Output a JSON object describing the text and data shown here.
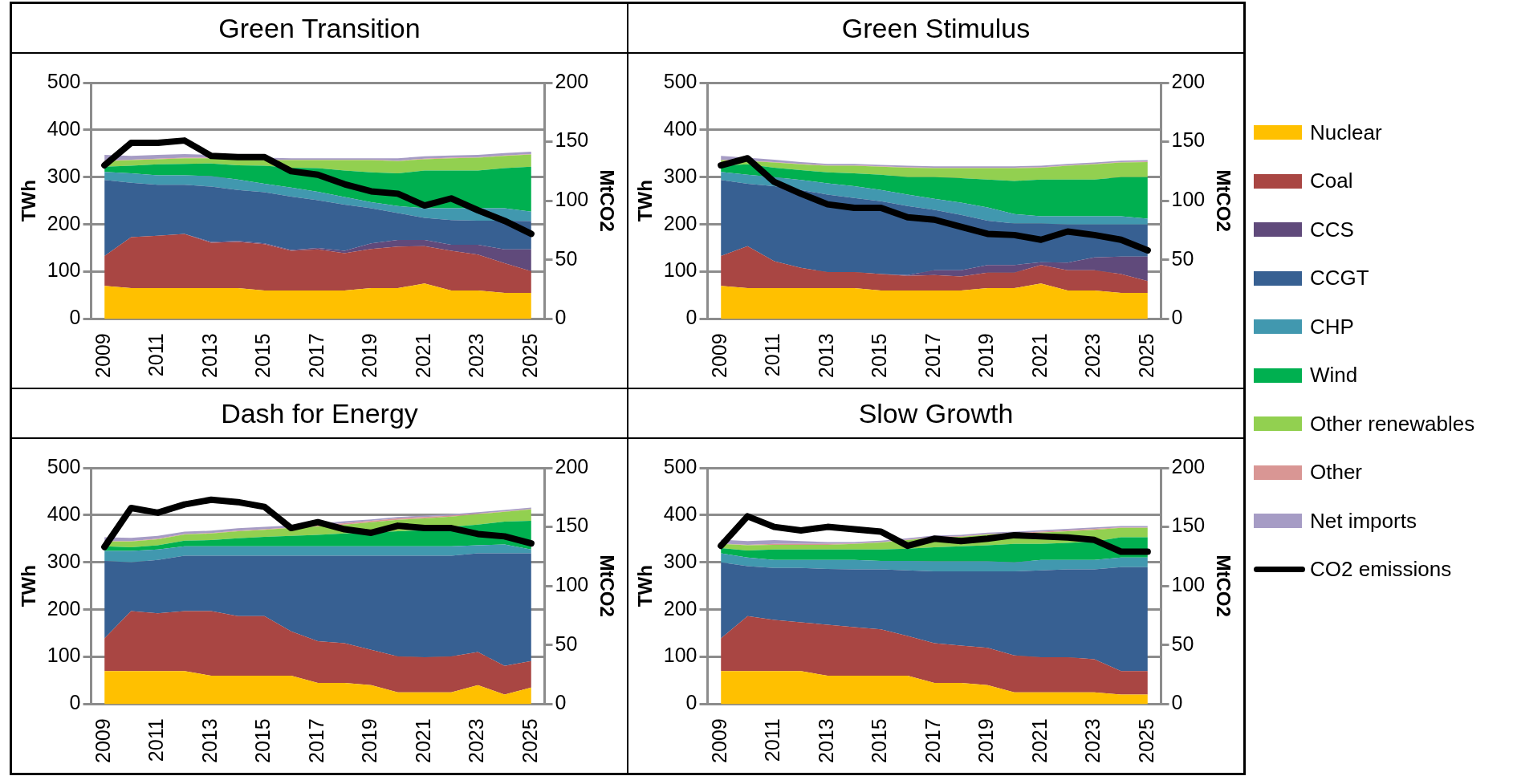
{
  "chart_data": [
    {
      "type": "area",
      "title": "Green Transition",
      "categories": [
        "2009",
        null,
        "2011",
        null,
        "2013",
        null,
        "2015",
        null,
        "2017",
        null,
        "2019",
        null,
        "2021",
        null,
        "2023",
        null,
        "2025"
      ],
      "ylabel": "TWh",
      "y2label": "MtCO2",
      "ylim": [
        0,
        500
      ],
      "yticks": [
        0,
        100,
        200,
        300,
        400,
        500
      ],
      "y2lim": [
        0,
        200
      ],
      "y2ticks": [
        0,
        50,
        100,
        150,
        200
      ],
      "stacked": true,
      "grid": "y",
      "marker": "none",
      "legend": "right",
      "series": [
        {
          "name": "Nuclear",
          "color": "#ffc000",
          "values": [
            70,
            65,
            65,
            65,
            65,
            65,
            60,
            60,
            60,
            60,
            65,
            65,
            75,
            60,
            60,
            55,
            55
          ]
        },
        {
          "name": "Coal",
          "color": "#a94643",
          "values": [
            63,
            108,
            111,
            115,
            96,
            98,
            98,
            84,
            87,
            79,
            83,
            88,
            79,
            84,
            76,
            63,
            46
          ]
        },
        {
          "name": "CCS",
          "color": "#604a7b",
          "values": [
            0,
            0,
            0,
            0,
            2,
            2,
            2,
            2,
            3,
            5,
            12,
            14,
            13,
            13,
            21,
            29,
            46
          ]
        },
        {
          "name": "CCGT",
          "color": "#376092",
          "values": [
            161,
            115,
            108,
            104,
            117,
            108,
            108,
            113,
            101,
            98,
            74,
            57,
            47,
            52,
            51,
            61,
            60
          ]
        },
        {
          "name": "CHP",
          "color": "#4198af",
          "values": [
            17,
            20,
            20,
            20,
            22,
            22,
            18,
            19,
            18,
            16,
            13,
            15,
            20,
            25,
            26,
            26,
            20
          ]
        },
        {
          "name": "Wind",
          "color": "#00b050",
          "values": [
            11,
            16,
            23,
            24,
            27,
            30,
            38,
            42,
            50,
            56,
            63,
            69,
            80,
            80,
            80,
            85,
            95
          ]
        },
        {
          "name": "Other renewables",
          "color": "#92d050",
          "values": [
            12,
            12,
            11,
            12,
            11,
            13,
            12,
            16,
            17,
            22,
            26,
            26,
            24,
            26,
            27,
            26,
            26
          ]
        },
        {
          "name": "Other",
          "color": "#d99694",
          "values": [
            1,
            1,
            1,
            1,
            1,
            1,
            1,
            1,
            1,
            1,
            1,
            1,
            1,
            1,
            1,
            1,
            1
          ]
        },
        {
          "name": "Net imports",
          "color": "#a69cc5",
          "values": [
            12,
            8,
            8,
            8,
            6,
            5,
            4,
            3,
            3,
            3,
            3,
            5,
            5,
            5,
            5,
            5,
            5
          ]
        },
        {
          "name": "CO2 emissions",
          "color": "#000000",
          "type": "line",
          "axis": "y2",
          "values": [
            130,
            149,
            149,
            151,
            138,
            137,
            137,
            125,
            122,
            114,
            108,
            106,
            96,
            102,
            92,
            83,
            72
          ]
        }
      ]
    },
    {
      "type": "area",
      "title": "Green Stimulus",
      "categories": [
        "2009",
        null,
        "2011",
        null,
        "2013",
        null,
        "2015",
        null,
        "2017",
        null,
        "2019",
        null,
        "2021",
        null,
        "2023",
        null,
        "2025"
      ],
      "ylabel": "TWh",
      "y2label": "MtCO2",
      "ylim": [
        0,
        500
      ],
      "yticks": [
        0,
        100,
        200,
        300,
        400,
        500
      ],
      "y2lim": [
        0,
        200
      ],
      "y2ticks": [
        0,
        50,
        100,
        150,
        200
      ],
      "stacked": true,
      "grid": "y",
      "marker": "none",
      "series": [
        {
          "color": "#ffc000",
          "values": [
            70,
            65,
            65,
            65,
            65,
            65,
            60,
            60,
            60,
            60,
            65,
            65,
            75,
            60,
            60,
            55,
            55
          ]
        },
        {
          "color": "#a94643",
          "values": [
            63,
            89,
            57,
            43,
            34,
            34,
            35,
            31,
            33,
            30,
            33,
            33,
            39,
            43,
            43,
            40,
            25
          ]
        },
        {
          "color": "#604a7b",
          "values": [
            0,
            0,
            0,
            0,
            0,
            0,
            0,
            2,
            10,
            13,
            16,
            16,
            6,
            16,
            27,
            37,
            52
          ]
        },
        {
          "color": "#376092",
          "values": [
            161,
            132,
            159,
            165,
            164,
            157,
            154,
            146,
            128,
            117,
            94,
            88,
            82,
            81,
            70,
            68,
            68
          ]
        },
        {
          "color": "#4198af",
          "values": [
            17,
            19,
            19,
            21,
            24,
            25,
            24,
            24,
            23,
            26,
            28,
            20,
            15,
            17,
            17,
            17,
            12
          ]
        },
        {
          "color": "#00b050",
          "values": [
            13,
            22,
            20,
            21,
            23,
            27,
            32,
            37,
            46,
            52,
            59,
            70,
            78,
            78,
            78,
            83,
            88
          ]
        },
        {
          "color": "#92d050",
          "values": [
            12,
            7,
            11,
            12,
            14,
            16,
            17,
            20,
            19,
            21,
            24,
            27,
            25,
            29,
            32,
            31,
            32
          ]
        },
        {
          "color": "#d99694",
          "values": [
            1,
            1,
            1,
            1,
            1,
            1,
            1,
            1,
            1,
            1,
            1,
            1,
            1,
            1,
            1,
            1,
            1
          ]
        },
        {
          "color": "#a69cc5",
          "values": [
            8,
            6,
            5,
            4,
            3,
            3,
            3,
            3,
            3,
            3,
            3,
            3,
            3,
            3,
            3,
            3,
            3
          ]
        },
        {
          "color": "#000000",
          "type": "line",
          "axis": "y2",
          "values": [
            130,
            136,
            116,
            106,
            97,
            94,
            94,
            86,
            84,
            78,
            72,
            71,
            67,
            74,
            71,
            67,
            58
          ]
        }
      ]
    },
    {
      "type": "area",
      "title": "Dash for Energy",
      "categories": [
        "2009",
        null,
        "2011",
        null,
        "2013",
        null,
        "2015",
        null,
        "2017",
        null,
        "2019",
        null,
        "2021",
        null,
        "2023",
        null,
        "2025"
      ],
      "ylabel": "TWh",
      "y2label": "MtCO2",
      "ylim": [
        0,
        500
      ],
      "yticks": [
        0,
        100,
        200,
        300,
        400,
        500
      ],
      "y2lim": [
        0,
        200
      ],
      "y2ticks": [
        0,
        50,
        100,
        150,
        200
      ],
      "stacked": true,
      "grid": "y",
      "marker": "none",
      "series": [
        {
          "color": "#ffc000",
          "values": [
            70,
            70,
            70,
            70,
            60,
            60,
            60,
            60,
            45,
            45,
            40,
            25,
            25,
            25,
            40,
            20,
            35
          ]
        },
        {
          "color": "#a94643",
          "values": [
            69,
            127,
            122,
            127,
            137,
            126,
            126,
            94,
            88,
            84,
            75,
            76,
            74,
            76,
            70,
            61,
            56
          ]
        },
        {
          "color": "#376092",
          "values": [
            164,
            103,
            113,
            117,
            117,
            128,
            128,
            160,
            181,
            185,
            199,
            213,
            215,
            213,
            209,
            238,
            228
          ]
        },
        {
          "color": "#4198af",
          "values": [
            21,
            24,
            22,
            20,
            20,
            20,
            20,
            20,
            20,
            20,
            20,
            20,
            20,
            20,
            17,
            19,
            8
          ]
        },
        {
          "color": "#00b050",
          "values": [
            10,
            8,
            9,
            12,
            13,
            17,
            20,
            22,
            24,
            27,
            29,
            32,
            34,
            41,
            44,
            48,
            61
          ]
        },
        {
          "color": "#92d050",
          "values": [
            10,
            12,
            13,
            13,
            14,
            15,
            15,
            17,
            18,
            19,
            22,
            24,
            25,
            22,
            22,
            21,
            24
          ]
        },
        {
          "color": "#d99694",
          "values": [
            1,
            1,
            1,
            1,
            1,
            1,
            1,
            1,
            2,
            3,
            3,
            3,
            3,
            2,
            1,
            1,
            1
          ]
        },
        {
          "color": "#a69cc5",
          "values": [
            8,
            7,
            6,
            5,
            5,
            5,
            5,
            4,
            4,
            4,
            3,
            3,
            3,
            3,
            3,
            3,
            3
          ]
        },
        {
          "color": "#000000",
          "type": "line",
          "axis": "y2",
          "values": [
            133,
            166,
            162,
            169,
            173,
            171,
            167,
            149,
            154,
            148,
            145,
            151,
            149,
            149,
            144,
            142,
            136
          ]
        }
      ]
    },
    {
      "type": "area",
      "title": "Slow Growth",
      "categories": [
        "2009",
        null,
        "2011",
        null,
        "2013",
        null,
        "2015",
        null,
        "2017",
        null,
        "2019",
        null,
        "2021",
        null,
        "2023",
        null,
        "2025"
      ],
      "ylabel": "TWh",
      "y2label": "MtCO2",
      "ylim": [
        0,
        500
      ],
      "yticks": [
        0,
        100,
        200,
        300,
        400,
        500
      ],
      "y2lim": [
        0,
        200
      ],
      "y2ticks": [
        0,
        50,
        100,
        150,
        200
      ],
      "stacked": true,
      "grid": "y",
      "marker": "none",
      "series": [
        {
          "color": "#ffc000",
          "values": [
            70,
            70,
            70,
            70,
            60,
            60,
            60,
            60,
            45,
            45,
            40,
            25,
            25,
            25,
            25,
            20,
            20
          ]
        },
        {
          "color": "#a94643",
          "values": [
            69,
            116,
            108,
            103,
            108,
            103,
            98,
            84,
            84,
            79,
            79,
            78,
            74,
            74,
            70,
            50,
            50
          ]
        },
        {
          "color": "#376092",
          "values": [
            161,
            106,
            110,
            115,
            118,
            122,
            127,
            139,
            152,
            157,
            162,
            178,
            184,
            186,
            190,
            220,
            220
          ]
        },
        {
          "color": "#4198af",
          "values": [
            19,
            18,
            17,
            17,
            19,
            20,
            18,
            20,
            21,
            21,
            21,
            19,
            22,
            20,
            20,
            20,
            20
          ]
        },
        {
          "color": "#00b050",
          "values": [
            11,
            15,
            22,
            22,
            22,
            22,
            24,
            26,
            30,
            32,
            34,
            39,
            34,
            36,
            39,
            43,
            43
          ]
        },
        {
          "color": "#92d050",
          "values": [
            9,
            11,
            10,
            10,
            10,
            12,
            15,
            18,
            21,
            20,
            23,
            22,
            24,
            25,
            25,
            20,
            20
          ]
        },
        {
          "color": "#d99694",
          "values": [
            1,
            1,
            2,
            2,
            2,
            1,
            1,
            1,
            1,
            1,
            1,
            1,
            2,
            2,
            2,
            1,
            1
          ]
        },
        {
          "color": "#a69cc5",
          "values": [
            8,
            8,
            8,
            6,
            4,
            3,
            3,
            3,
            3,
            3,
            3,
            3,
            3,
            3,
            3,
            3,
            3
          ]
        },
        {
          "color": "#000000",
          "type": "line",
          "axis": "y2",
          "values": [
            134,
            159,
            150,
            147,
            150,
            148,
            146,
            134,
            140,
            138,
            140,
            143,
            142,
            141,
            139,
            129,
            129
          ]
        }
      ]
    }
  ]
}
